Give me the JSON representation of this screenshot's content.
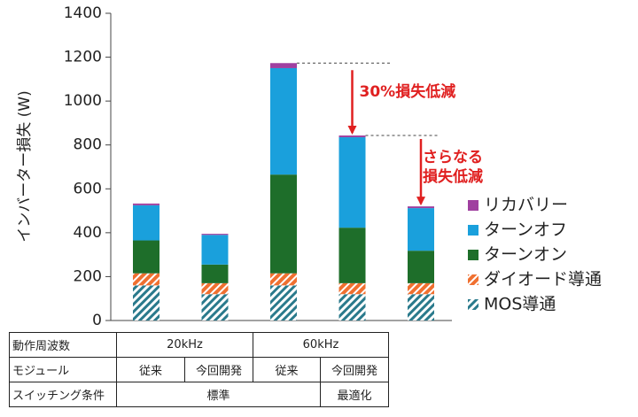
{
  "chart_data": {
    "type": "bar",
    "stacked": true,
    "ylabel": "インバーター損失 (W)",
    "categories": [
      null,
      null,
      null,
      null,
      null
    ],
    "series": [
      {
        "name": "MOS導通",
        "color": "#2a7a8c",
        "hatch": true,
        "values": [
          160,
          120,
          160,
          120,
          120
        ]
      },
      {
        "name": "ダイオード導通",
        "color": "#f07030",
        "hatch": true,
        "values": [
          55,
          50,
          55,
          50,
          50
        ]
      },
      {
        "name": "ターンオン",
        "color": "#1e6e2a",
        "hatch": false,
        "values": [
          150,
          85,
          450,
          253,
          148
        ]
      },
      {
        "name": "ターンオフ",
        "color": "#1aa0dc",
        "hatch": false,
        "values": [
          160,
          135,
          485,
          412,
          194
        ]
      },
      {
        "name": "リカバリー",
        "color": "#a040a0",
        "hatch": false,
        "values": [
          8,
          5,
          23,
          8,
          8
        ]
      }
    ],
    "ylim": [
      0,
      1400
    ],
    "yticks": [
      0,
      200,
      400,
      600,
      800,
      1000,
      1200,
      1400
    ],
    "annotations": [
      {
        "lines": [
          "30%損失低減"
        ],
        "color": "#e02020"
      },
      {
        "lines": [
          "さらなる",
          "損失低減"
        ],
        "color": "#e02020"
      }
    ]
  },
  "table": {
    "rows": [
      [
        "動作周波数",
        "20kHz",
        "60kHz"
      ],
      [
        "モジュール",
        "従来",
        "今回開発",
        "従来",
        "今回開発"
      ],
      [
        "スイッチング条件",
        "標準",
        "最適化"
      ]
    ]
  }
}
